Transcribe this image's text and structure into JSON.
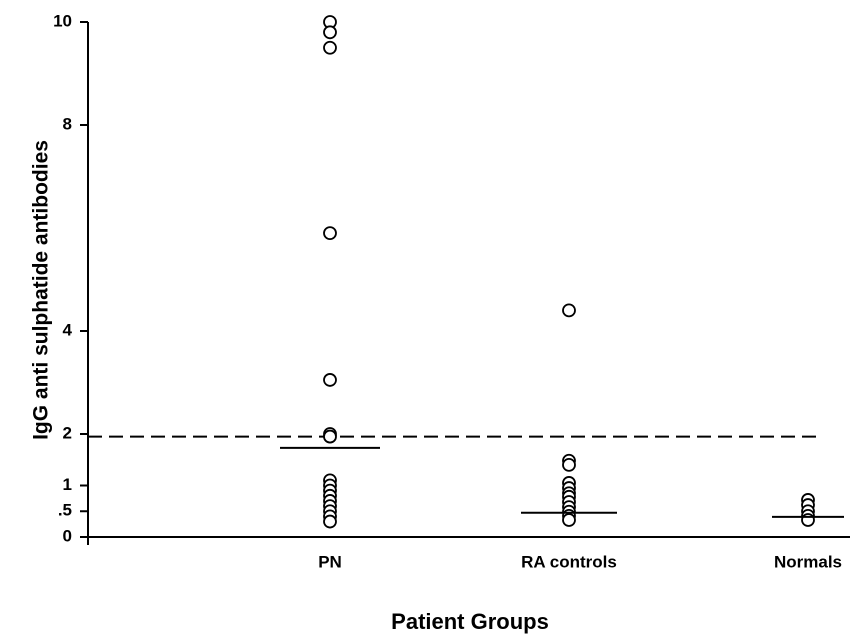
{
  "chart_data": {
    "type": "strip",
    "y_label": "IgG anti sulphatide antibodies",
    "x_label": "Patient Groups",
    "categories": [
      "PN",
      "RA controls",
      "Normals"
    ],
    "points": [
      [
        10,
        9.8,
        9.5,
        5.9,
        3.05,
        2.0,
        1.95,
        1.1,
        1.0,
        0.9,
        0.8,
        0.7,
        0.6,
        0.5,
        0.4,
        0.3
      ],
      [
        4.4,
        1.48,
        1.4,
        1.05,
        0.95,
        0.85,
        0.78,
        0.68,
        0.58,
        0.49,
        0.41,
        0.33
      ],
      [
        0.72,
        0.62,
        0.5,
        0.41,
        0.33
      ]
    ],
    "medians": [
      1.73,
      0.47,
      0.39
    ],
    "reference_line": 1.95,
    "color": "#000000",
    "ylim": [
      0,
      10
    ],
    "yticks": [
      0,
      {
        "value": 0.5,
        "label": ".5"
      },
      1,
      2,
      4,
      8,
      10
    ]
  }
}
